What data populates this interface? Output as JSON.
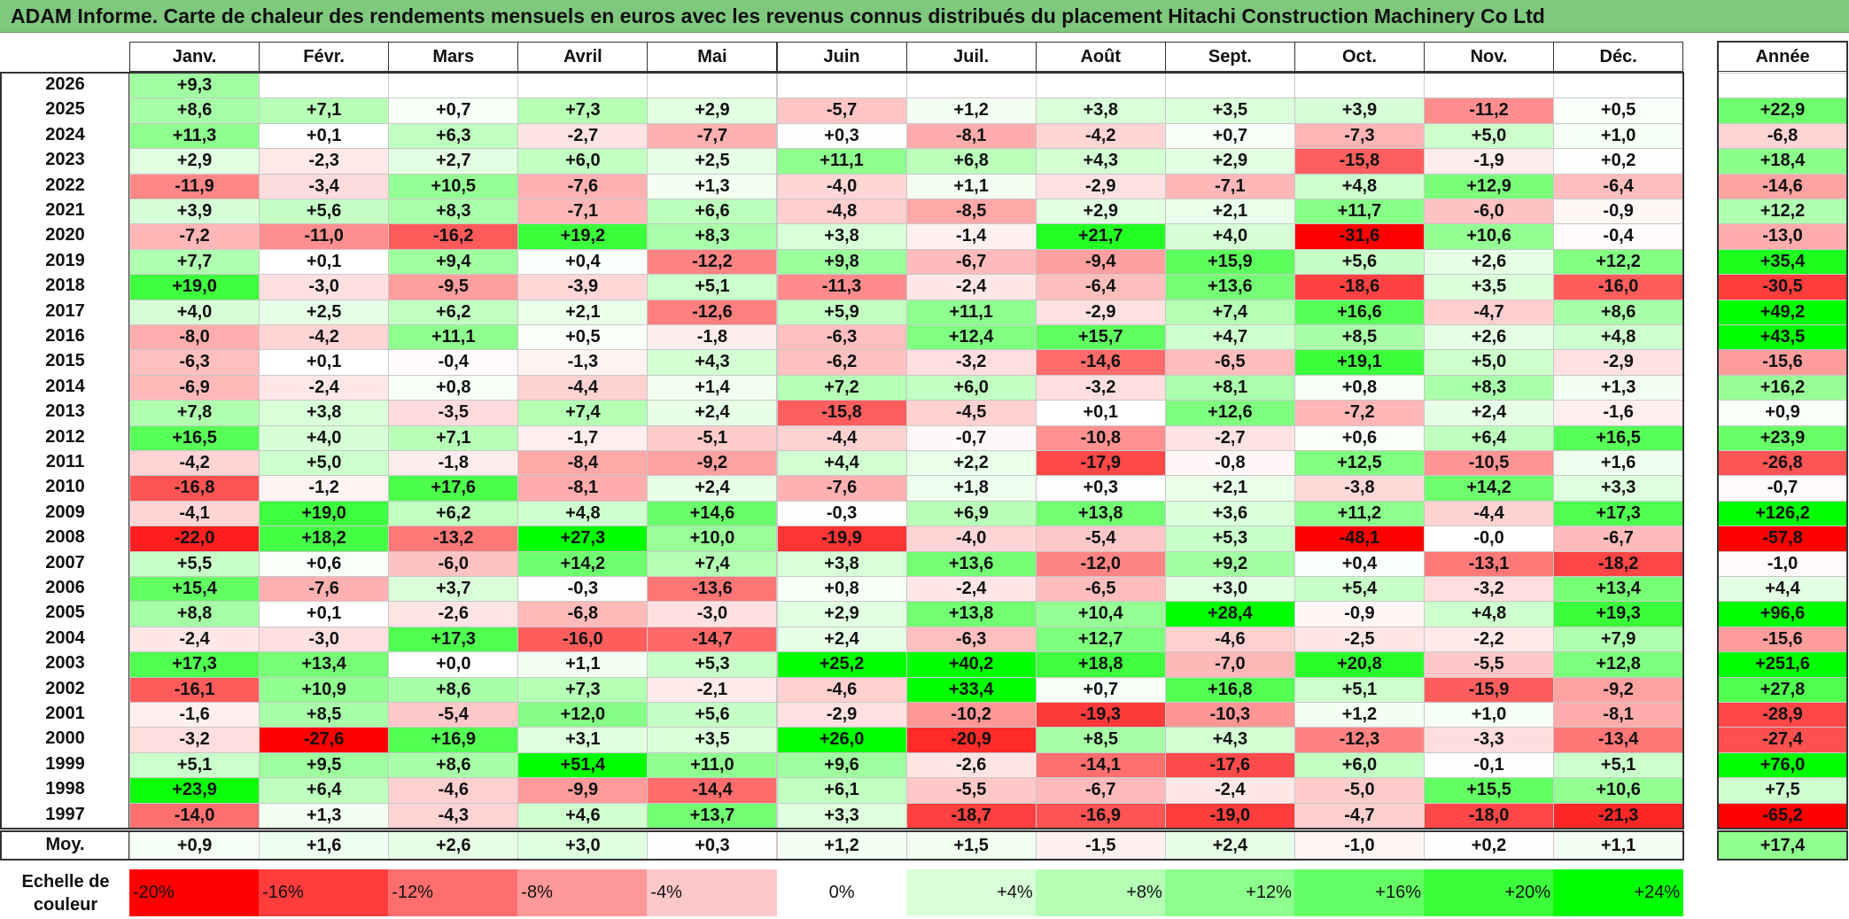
{
  "title": "ADAM Informe. Carte de chaleur des rendements mensuels en euros avec les revenus connus distribués du placement Hitachi Construction Machinery Co Ltd",
  "chart_data": {
    "type": "heatmap",
    "title": "ADAM Informe. Carte de chaleur des rendements mensuels en euros avec les revenus connus distribués du placement Hitachi Construction Machinery Co Ltd",
    "columns": [
      "Janv.",
      "Févr.",
      "Mars",
      "Avril",
      "Mai",
      "Juin",
      "Juil.",
      "Août",
      "Sept.",
      "Oct.",
      "Nov.",
      "Déc."
    ],
    "year_header": "Année",
    "avg_label": "Moy.",
    "rows": [
      {
        "year": "2026",
        "values": [
          "+9,3",
          null,
          null,
          null,
          null,
          null,
          null,
          null,
          null,
          null,
          null,
          null
        ],
        "annual": null
      },
      {
        "year": "2025",
        "values": [
          "+8,6",
          "+7,1",
          "+0,7",
          "+7,3",
          "+2,9",
          "-5,7",
          "+1,2",
          "+3,8",
          "+3,5",
          "+3,9",
          "-11,2",
          "+0,5"
        ],
        "annual": "+22,9"
      },
      {
        "year": "2024",
        "values": [
          "+11,3",
          "+0,1",
          "+6,3",
          "-2,7",
          "-7,7",
          "+0,3",
          "-8,1",
          "-4,2",
          "+0,7",
          "-7,3",
          "+5,0",
          "+1,0"
        ],
        "annual": "-6,8"
      },
      {
        "year": "2023",
        "values": [
          "+2,9",
          "-2,3",
          "+2,7",
          "+6,0",
          "+2,5",
          "+11,1",
          "+6,8",
          "+4,3",
          "+2,9",
          "-15,8",
          "-1,9",
          "+0,2"
        ],
        "annual": "+18,4"
      },
      {
        "year": "2022",
        "values": [
          "-11,9",
          "-3,4",
          "+10,5",
          "-7,6",
          "+1,3",
          "-4,0",
          "+1,1",
          "-2,9",
          "-7,1",
          "+4,8",
          "+12,9",
          "-6,4"
        ],
        "annual": "-14,6"
      },
      {
        "year": "2021",
        "values": [
          "+3,9",
          "+5,6",
          "+8,3",
          "-7,1",
          "+6,6",
          "-4,8",
          "-8,5",
          "+2,9",
          "+2,1",
          "+11,7",
          "-6,0",
          "-0,9"
        ],
        "annual": "+12,2"
      },
      {
        "year": "2020",
        "values": [
          "-7,2",
          "-11,0",
          "-16,2",
          "+19,2",
          "+8,3",
          "+3,8",
          "-1,4",
          "+21,7",
          "+4,0",
          "-31,6",
          "+10,6",
          "-0,4"
        ],
        "annual": "-13,0"
      },
      {
        "year": "2019",
        "values": [
          "+7,7",
          "+0,1",
          "+9,4",
          "+0,4",
          "-12,2",
          "+9,8",
          "-6,7",
          "-9,4",
          "+15,9",
          "+5,6",
          "+2,6",
          "+12,2"
        ],
        "annual": "+35,4"
      },
      {
        "year": "2018",
        "values": [
          "+19,0",
          "-3,0",
          "-9,5",
          "-3,9",
          "+5,1",
          "-11,3",
          "-2,4",
          "-6,4",
          "+13,6",
          "-18,6",
          "+3,5",
          "-16,0"
        ],
        "annual": "-30,5"
      },
      {
        "year": "2017",
        "values": [
          "+4,0",
          "+2,5",
          "+6,2",
          "+2,1",
          "-12,6",
          "+5,9",
          "+11,1",
          "-2,9",
          "+7,4",
          "+16,6",
          "-4,7",
          "+8,6"
        ],
        "annual": "+49,2"
      },
      {
        "year": "2016",
        "values": [
          "-8,0",
          "-4,2",
          "+11,1",
          "+0,5",
          "-1,8",
          "-6,3",
          "+12,4",
          "+15,7",
          "+4,7",
          "+8,5",
          "+2,6",
          "+4,8"
        ],
        "annual": "+43,5"
      },
      {
        "year": "2015",
        "values": [
          "-6,3",
          "+0,1",
          "-0,4",
          "-1,3",
          "+4,3",
          "-6,2",
          "-3,2",
          "-14,6",
          "-6,5",
          "+19,1",
          "+5,0",
          "-2,9"
        ],
        "annual": "-15,6"
      },
      {
        "year": "2014",
        "values": [
          "-6,9",
          "-2,4",
          "+0,8",
          "-4,4",
          "+1,4",
          "+7,2",
          "+6,0",
          "-3,2",
          "+8,1",
          "+0,8",
          "+8,3",
          "+1,3"
        ],
        "annual": "+16,2"
      },
      {
        "year": "2013",
        "values": [
          "+7,8",
          "+3,8",
          "-3,5",
          "+7,4",
          "+2,4",
          "-15,8",
          "-4,5",
          "+0,1",
          "+12,6",
          "-7,2",
          "+2,4",
          "-1,6"
        ],
        "annual": "+0,9"
      },
      {
        "year": "2012",
        "values": [
          "+16,5",
          "+4,0",
          "+7,1",
          "-1,7",
          "-5,1",
          "-4,4",
          "-0,7",
          "-10,8",
          "-2,7",
          "+0,6",
          "+6,4",
          "+16,5"
        ],
        "annual": "+23,9"
      },
      {
        "year": "2011",
        "values": [
          "-4,2",
          "+5,0",
          "-1,8",
          "-8,4",
          "-9,2",
          "+4,4",
          "+2,2",
          "-17,9",
          "-0,8",
          "+12,5",
          "-10,5",
          "+1,6"
        ],
        "annual": "-26,8"
      },
      {
        "year": "2010",
        "values": [
          "-16,8",
          "-1,2",
          "+17,6",
          "-8,1",
          "+2,4",
          "-7,6",
          "+1,8",
          "+0,3",
          "+2,1",
          "-3,8",
          "+14,2",
          "+3,3"
        ],
        "annual": "-0,7"
      },
      {
        "year": "2009",
        "values": [
          "-4,1",
          "+19,0",
          "+6,2",
          "+4,8",
          "+14,6",
          "-0,3",
          "+6,9",
          "+13,8",
          "+3,6",
          "+11,2",
          "-4,4",
          "+17,3"
        ],
        "annual": "+126,2"
      },
      {
        "year": "2008",
        "values": [
          "-22,0",
          "+18,2",
          "-13,2",
          "+27,3",
          "+10,0",
          "-19,9",
          "-4,0",
          "-5,4",
          "+5,3",
          "-48,1",
          "-0,0",
          "-6,7"
        ],
        "annual": "-57,8"
      },
      {
        "year": "2007",
        "values": [
          "+5,5",
          "+0,6",
          "-6,0",
          "+14,2",
          "+7,4",
          "+3,8",
          "+13,6",
          "-12,0",
          "+9,2",
          "+0,4",
          "-13,1",
          "-18,2"
        ],
        "annual": "-1,0"
      },
      {
        "year": "2006",
        "values": [
          "+15,4",
          "-7,6",
          "+3,7",
          "-0,3",
          "-13,6",
          "+0,8",
          "-2,4",
          "-6,5",
          "+3,0",
          "+5,4",
          "-3,2",
          "+13,4"
        ],
        "annual": "+4,4"
      },
      {
        "year": "2005",
        "values": [
          "+8,8",
          "+0,1",
          "-2,6",
          "-6,8",
          "-3,0",
          "+2,9",
          "+13,8",
          "+10,4",
          "+28,4",
          "-0,9",
          "+4,8",
          "+19,3"
        ],
        "annual": "+96,6"
      },
      {
        "year": "2004",
        "values": [
          "-2,4",
          "-3,0",
          "+17,3",
          "-16,0",
          "-14,7",
          "+2,4",
          "-6,3",
          "+12,7",
          "-4,6",
          "-2,5",
          "-2,2",
          "+7,9"
        ],
        "annual": "-15,6"
      },
      {
        "year": "2003",
        "values": [
          "+17,3",
          "+13,4",
          "+0,0",
          "+1,1",
          "+5,3",
          "+25,2",
          "+40,2",
          "+18,8",
          "-7,0",
          "+20,8",
          "-5,5",
          "+12,8"
        ],
        "annual": "+251,6"
      },
      {
        "year": "2002",
        "values": [
          "-16,1",
          "+10,9",
          "+8,6",
          "+7,3",
          "-2,1",
          "-4,6",
          "+33,4",
          "+0,7",
          "+16,8",
          "+5,1",
          "-15,9",
          "-9,2"
        ],
        "annual": "+27,8"
      },
      {
        "year": "2001",
        "values": [
          "-1,6",
          "+8,5",
          "-5,4",
          "+12,0",
          "+5,6",
          "-2,9",
          "-10,2",
          "-19,3",
          "-10,3",
          "+1,2",
          "+1,0",
          "-8,1"
        ],
        "annual": "-28,9"
      },
      {
        "year": "2000",
        "values": [
          "-3,2",
          "-27,6",
          "+16,9",
          "+3,1",
          "+3,5",
          "+26,0",
          "-20,9",
          "+8,5",
          "+4,3",
          "-12,3",
          "-3,3",
          "-13,4"
        ],
        "annual": "-27,4"
      },
      {
        "year": "1999",
        "values": [
          "+5,1",
          "+9,5",
          "+8,6",
          "+51,4",
          "+11,0",
          "+9,6",
          "-2,6",
          "-14,1",
          "-17,6",
          "+6,0",
          "-0,1",
          "+5,1"
        ],
        "annual": "+76,0"
      },
      {
        "year": "1998",
        "values": [
          "+23,9",
          "+6,4",
          "-4,6",
          "-9,9",
          "-14,4",
          "+6,1",
          "-5,5",
          "-6,7",
          "-2,4",
          "-5,0",
          "+15,5",
          "+10,6"
        ],
        "annual": "+7,5"
      },
      {
        "year": "1997",
        "values": [
          "-14,0",
          "+1,3",
          "-4,3",
          "+4,6",
          "+13,7",
          "+3,3",
          "-18,7",
          "-16,9",
          "-19,0",
          "-4,7",
          "-18,0",
          "-21,3"
        ],
        "annual": "-65,2"
      }
    ],
    "averages": [
      "+0,9",
      "+1,6",
      "+2,6",
      "+3,0",
      "+0,3",
      "+1,2",
      "+1,5",
      "-1,5",
      "+2,4",
      "-1,0",
      "+0,2",
      "+1,1"
    ],
    "average_annual": "+17,4",
    "legend": {
      "label": "Echelle de couleur",
      "stops": [
        "-20%",
        "-16%",
        "-12%",
        "-8%",
        "-4%",
        "0%",
        "+4%",
        "+8%",
        "+12%",
        "+16%",
        "+20%",
        "+24%"
      ],
      "colors": [
        "#ff0000",
        "#ff3c3c",
        "#ff6e6e",
        "#ff9898",
        "#ffc8c8",
        "#ffffff",
        "#d8ffd8",
        "#b4ffb4",
        "#8cff8c",
        "#64ff64",
        "#3cff3c",
        "#00ff00"
      ]
    }
  }
}
